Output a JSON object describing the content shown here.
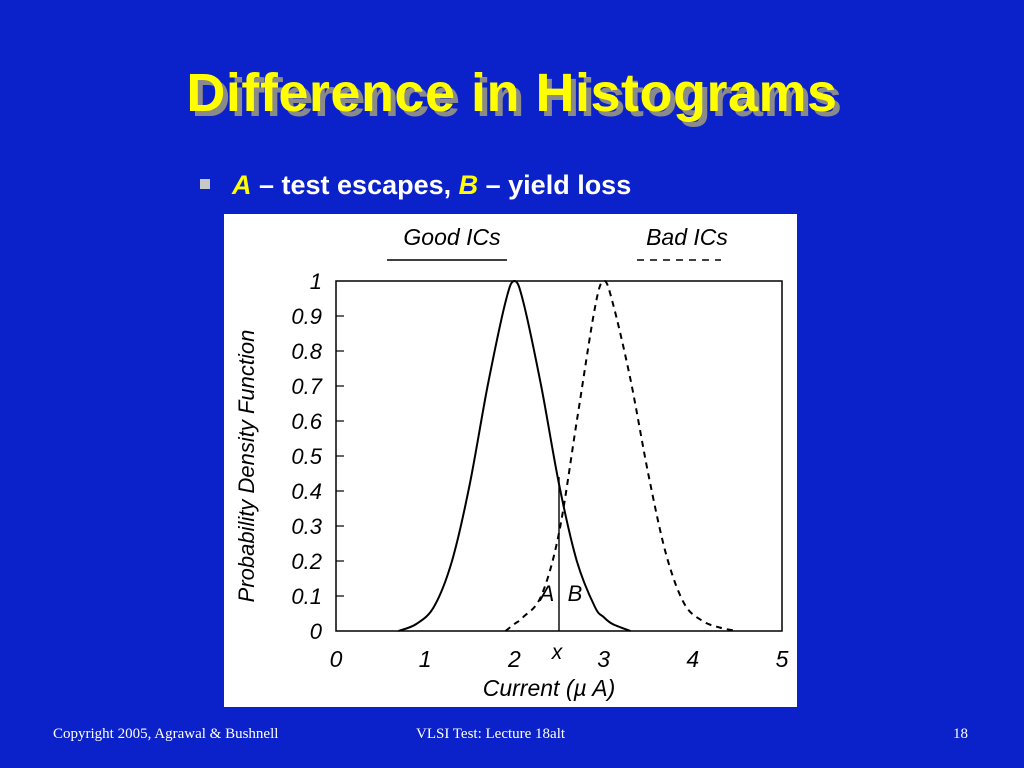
{
  "slide": {
    "title": "Difference in Histograms",
    "bullet": {
      "a_label": "A",
      "a_text": " – test escapes, ",
      "b_label": "B",
      "b_text": " – yield loss"
    },
    "footer": {
      "copyright": "Copyright 2005, Agrawal & Bushnell",
      "lecture": "VLSI Test: Lecture 18alt",
      "page": "18"
    },
    "colors": {
      "background": "#0b21c9",
      "title": "#ffff00",
      "accent": "#ffff00",
      "text": "#ffffff"
    }
  },
  "chart_data": {
    "type": "line",
    "xlabel": "Current (µ A)",
    "ylabel": "Probability Density Function",
    "xlim": [
      0,
      5
    ],
    "ylim": [
      0,
      1
    ],
    "x_ticks": [
      "0",
      "1",
      "2",
      "3",
      "4",
      "5"
    ],
    "y_ticks": [
      "0",
      "0.1",
      "0.2",
      "0.3",
      "0.4",
      "0.5",
      "0.6",
      "0.7",
      "0.8",
      "0.9",
      "1"
    ],
    "threshold": {
      "label": "x",
      "value": 2.5
    },
    "region_labels": {
      "a": "A",
      "b": "B"
    },
    "legend": [
      "Good ICs",
      "Bad ICs"
    ],
    "x": [
      0.7,
      0.9,
      1.1,
      1.3,
      1.5,
      1.7,
      1.9,
      2.0,
      2.1,
      2.3,
      2.5,
      2.7,
      2.9,
      3.0,
      3.1,
      3.3,
      3.5,
      3.7,
      3.9,
      4.1,
      4.3,
      4.5
    ],
    "series": [
      {
        "name": "Good ICs",
        "style": "solid",
        "values": [
          0.0,
          0.02,
          0.07,
          0.2,
          0.42,
          0.7,
          0.94,
          1.0,
          0.94,
          0.7,
          0.42,
          0.2,
          0.07,
          0.04,
          0.02,
          0.0,
          null,
          null,
          null,
          null,
          null,
          null
        ]
      },
      {
        "name": "Bad ICs",
        "style": "dashed",
        "values": [
          null,
          null,
          null,
          null,
          null,
          null,
          0.0,
          0.02,
          0.04,
          0.1,
          0.28,
          0.6,
          0.92,
          1.0,
          0.94,
          0.72,
          0.45,
          0.22,
          0.08,
          0.03,
          0.01,
          0.0
        ]
      }
    ]
  }
}
